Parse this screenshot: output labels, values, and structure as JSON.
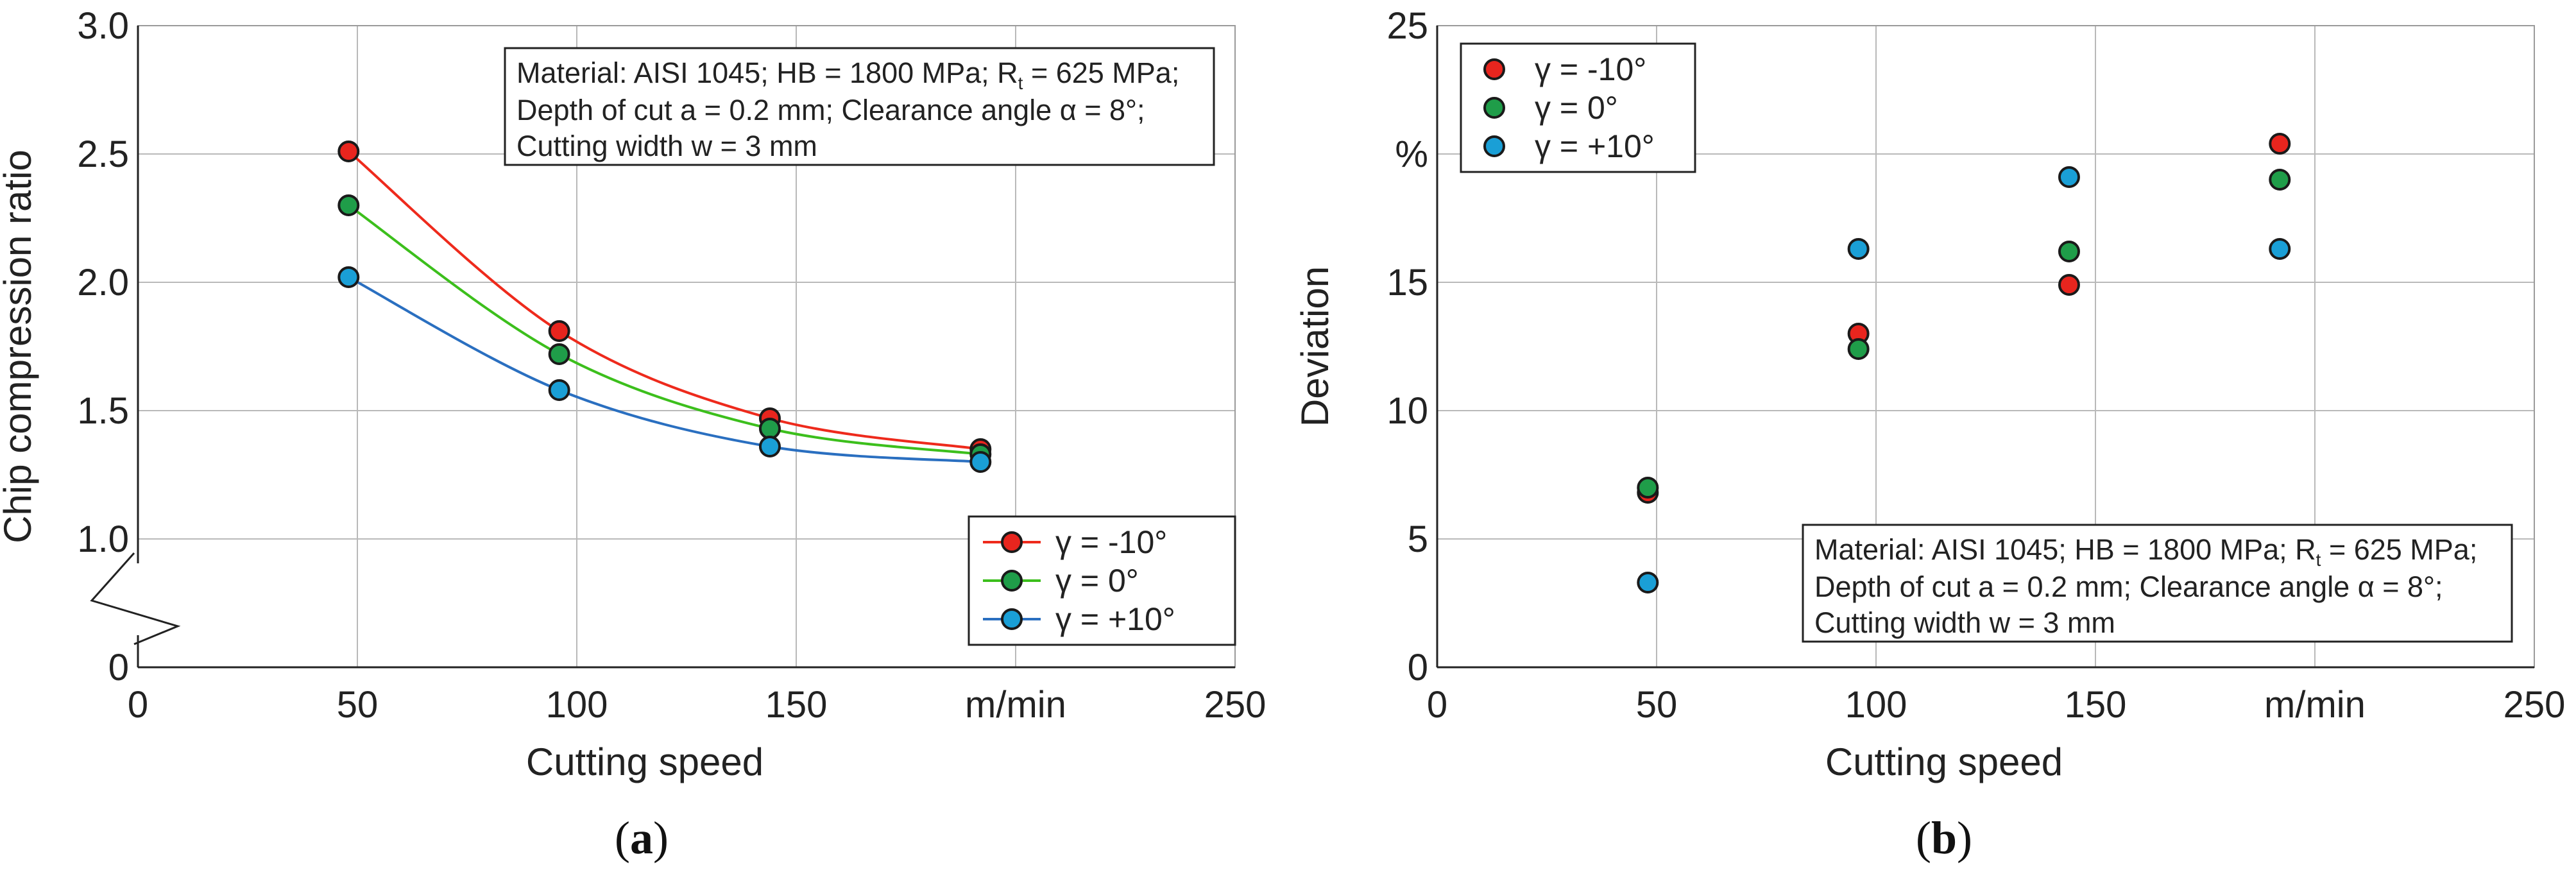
{
  "chart_data": [
    {
      "type": "line",
      "panel_label": "a",
      "xlabel": "Cutting speed",
      "ylabel": "Chip compression ratio",
      "xlim": [
        0,
        250
      ],
      "ylim": [
        0.5,
        3.0
      ],
      "x_ticks": [
        {
          "value": 0,
          "label": "0"
        },
        {
          "value": 50,
          "label": "50"
        },
        {
          "value": 100,
          "label": "100"
        },
        {
          "value": 150,
          "label": "150"
        },
        {
          "value": 200,
          "label": "m/min"
        },
        {
          "value": 250,
          "label": "250"
        }
      ],
      "y_ticks": [
        {
          "value": 0.5,
          "label": "0"
        },
        {
          "value": 1.0,
          "label": "1.0"
        },
        {
          "value": 1.5,
          "label": "1.5"
        },
        {
          "value": 2.0,
          "label": "2.0"
        },
        {
          "value": 2.5,
          "label": "2.5"
        },
        {
          "value": 3.0,
          "label": "3.0"
        }
      ],
      "axis_break": true,
      "grid": true,
      "legend_position": "bottom-right",
      "annotation": {
        "line1_pre": "Material: AISI 1045; HB = 1800 MPa; R",
        "line1_sub": "t",
        "line1_post": " = 625 MPa;",
        "line2": "Depth of cut a = 0.2 mm; Clearance angle α = 8°;",
        "line3": "Cutting width w = 3 mm",
        "position": "top-right"
      },
      "x": [
        48,
        96,
        144,
        192
      ],
      "series": [
        {
          "name": "γ = -10°",
          "color": "#e8251e",
          "values": [
            2.51,
            1.81,
            1.47,
            1.35
          ]
        },
        {
          "name": "γ = 0°",
          "color": "#1f9d49",
          "values": [
            2.3,
            1.72,
            1.43,
            1.33
          ]
        },
        {
          "name": "γ = +10°",
          "color": "#1a9fd6",
          "values": [
            2.02,
            1.58,
            1.36,
            1.3
          ]
        }
      ],
      "line_colors": [
        "#ee2a1c",
        "#3cbf1c",
        "#2a6fc0"
      ]
    },
    {
      "type": "scatter",
      "panel_label": "b",
      "xlabel": "Cutting speed",
      "ylabel": "Deviation",
      "xlim": [
        0,
        250
      ],
      "ylim": [
        0,
        25
      ],
      "x_ticks": [
        {
          "value": 0,
          "label": "0"
        },
        {
          "value": 50,
          "label": "50"
        },
        {
          "value": 100,
          "label": "100"
        },
        {
          "value": 150,
          "label": "150"
        },
        {
          "value": 200,
          "label": "m/min"
        },
        {
          "value": 250,
          "label": "250"
        }
      ],
      "y_ticks": [
        {
          "value": 0,
          "label": "0"
        },
        {
          "value": 5,
          "label": "5"
        },
        {
          "value": 10,
          "label": "10"
        },
        {
          "value": 15,
          "label": "15"
        },
        {
          "value": 20,
          "label": "%"
        },
        {
          "value": 25,
          "label": "25"
        }
      ],
      "grid": true,
      "legend_position": "top-left",
      "annotation": {
        "line1_pre": "Material: AISI 1045; HB = 1800 MPa; R",
        "line1_sub": "t",
        "line1_post": " = 625 MPa;",
        "line2": "Depth of cut a = 0.2 mm; Clearance angle α = 8°;",
        "line3": "Cutting width w = 3 mm",
        "position": "bottom-right"
      },
      "x": [
        48,
        96,
        144,
        192
      ],
      "series": [
        {
          "name": "γ = -10°",
          "color": "#e8251e",
          "values": [
            6.8,
            13.0,
            14.9,
            20.4
          ]
        },
        {
          "name": "γ = 0°",
          "color": "#1f9d49",
          "values": [
            7.0,
            12.4,
            16.2,
            19.0
          ]
        },
        {
          "name": "γ = +10°",
          "color": "#1a9fd6",
          "values": [
            3.3,
            16.3,
            19.1,
            16.3
          ]
        }
      ]
    }
  ]
}
